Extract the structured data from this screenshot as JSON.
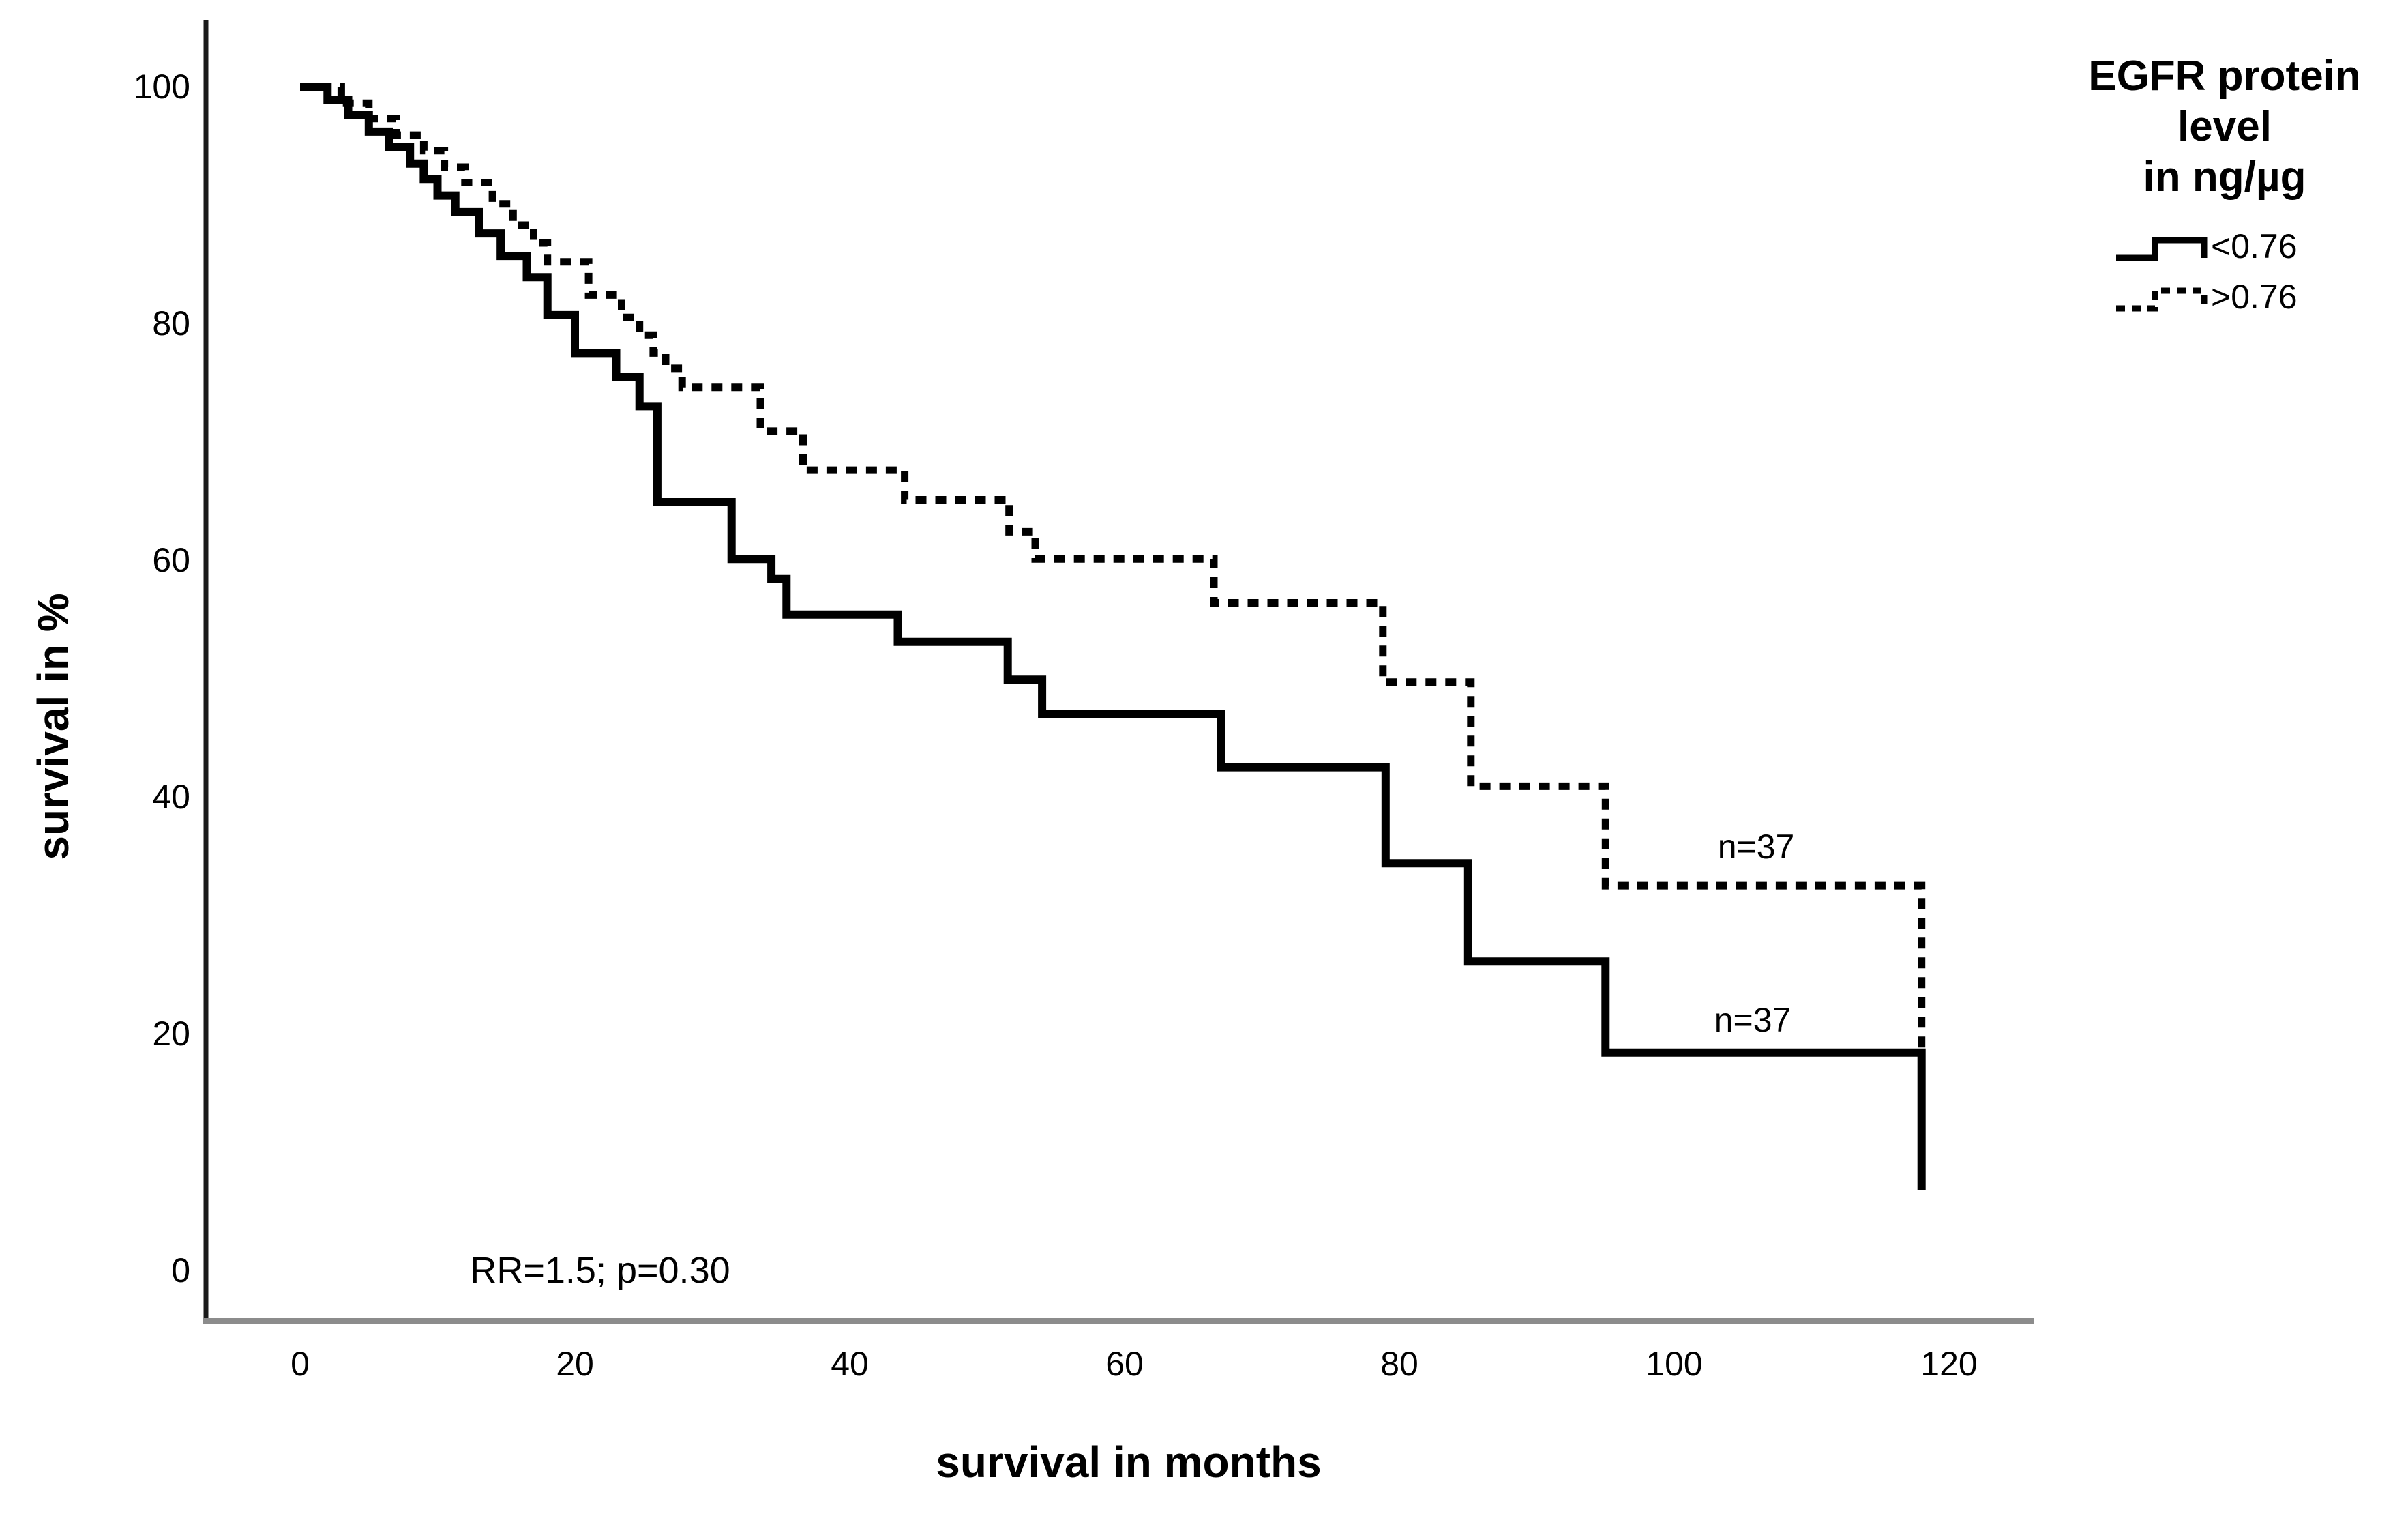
{
  "chart_data": {
    "type": "line",
    "subtype": "kaplan-meier-step",
    "title": "",
    "xlabel": "survival in months",
    "ylabel": "survival in %",
    "x_ticks": [
      0,
      20,
      40,
      60,
      80,
      100,
      120
    ],
    "y_ticks": [
      0,
      20,
      40,
      60,
      80,
      100
    ],
    "xlim": [
      -7,
      126
    ],
    "ylim": [
      -4.5,
      104
    ],
    "grid": false,
    "legend": {
      "position": "top-right",
      "title_lines": [
        "EGFR protein",
        "level",
        "in ng/µg"
      ],
      "entries": [
        {
          "label": "<0.76",
          "style": "solid",
          "color": "#000000"
        },
        {
          "label": ">0.76",
          "style": "dashed",
          "color": "#000000"
        }
      ]
    },
    "annotations": {
      "rr": {
        "text": "RR=1.5; p=0.30"
      },
      "n_upper": {
        "text": "n=37",
        "series": ">0.76"
      },
      "n_lower": {
        "text": "n=37",
        "series": "<0.76"
      }
    },
    "series": [
      {
        "name": "<0.76",
        "n": 37,
        "style": "solid",
        "points": [
          [
            0,
            100
          ],
          [
            2,
            98.9
          ],
          [
            3.5,
            97.6
          ],
          [
            5,
            96.2
          ],
          [
            6.5,
            94.9
          ],
          [
            8,
            93.5
          ],
          [
            9,
            92.2
          ],
          [
            10,
            90.8
          ],
          [
            11.3,
            89.4
          ],
          [
            13,
            87.6
          ],
          [
            14.6,
            85.7
          ],
          [
            16.5,
            83.9
          ],
          [
            18,
            80.7
          ],
          [
            20,
            77.5
          ],
          [
            23,
            75.5
          ],
          [
            24.7,
            73.0
          ],
          [
            26,
            64.9
          ],
          [
            31.4,
            60.1
          ],
          [
            34.3,
            58.4
          ],
          [
            35.4,
            55.4
          ],
          [
            43.5,
            53.1
          ],
          [
            51.5,
            49.9
          ],
          [
            54,
            47.0
          ],
          [
            67,
            42.5
          ],
          [
            79,
            34.4
          ],
          [
            85,
            26.1
          ],
          [
            95,
            18.4
          ],
          [
            118,
            6.8
          ]
        ]
      },
      {
        "name": ">0.76",
        "n": 37,
        "style": "dashed",
        "points": [
          [
            0,
            100
          ],
          [
            3,
            98.6
          ],
          [
            5,
            97.3
          ],
          [
            7,
            95.9
          ],
          [
            9,
            94.6
          ],
          [
            10.5,
            93.2
          ],
          [
            12,
            91.9
          ],
          [
            14,
            90.1
          ],
          [
            15.5,
            88.3
          ],
          [
            17,
            86.8
          ],
          [
            18,
            85.2
          ],
          [
            21,
            82.4
          ],
          [
            23.4,
            80.5
          ],
          [
            24.7,
            79.0
          ],
          [
            25.7,
            77.5
          ],
          [
            26.6,
            76.2
          ],
          [
            27.8,
            74.6
          ],
          [
            33.5,
            70.9
          ],
          [
            36.6,
            67.6
          ],
          [
            44,
            65.1
          ],
          [
            51.6,
            62.4
          ],
          [
            53.5,
            60.1
          ],
          [
            66.5,
            56.4
          ],
          [
            78.8,
            49.7
          ],
          [
            85.2,
            40.9
          ],
          [
            95,
            32.5
          ],
          [
            118,
            18.7
          ]
        ]
      }
    ]
  },
  "colors": {
    "curve": "#000000",
    "axis_left": "#1a1a1a",
    "axis_bottom": "#8c8c8c",
    "background": "#ffffff",
    "text": "#000000"
  }
}
